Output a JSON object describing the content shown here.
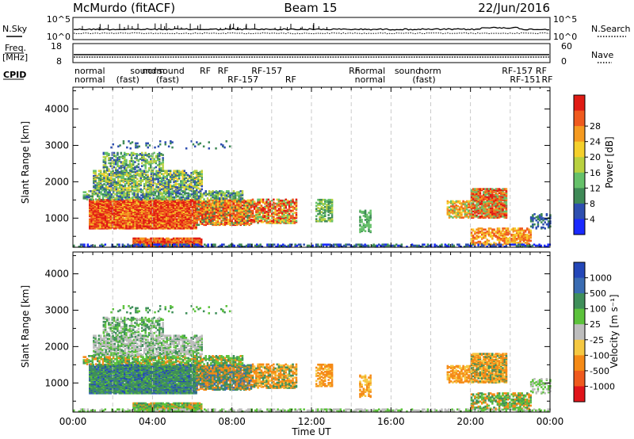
{
  "header": {
    "station": "McMurdo (fitACF)",
    "beam": "Beam 15",
    "date": "22/Jun/2016"
  },
  "noise_panel": {
    "left_label": "N.Sky",
    "right_label": "N.Search",
    "left_ticks": [
      "10^5",
      "10^0"
    ],
    "right_ticks": [
      "10^5",
      "10^0"
    ]
  },
  "freq_panel": {
    "left_label_line1": "Freq.",
    "left_label_line2": "[MHz]",
    "right_label": "Nave",
    "left_ticks": [
      "18",
      "8"
    ],
    "right_ticks": [
      "60",
      "0"
    ]
  },
  "cpid": {
    "label": "CPID",
    "row1": [
      {
        "text": "normal",
        "x": 0.0
      },
      {
        "text": "sound",
        "x": 2.8
      },
      {
        "text": "norm",
        "x": 3.4
      },
      {
        "text": "sound",
        "x": 4.2
      },
      {
        "text": "RF",
        "x": 6.3
      },
      {
        "text": "RF",
        "x": 7.2
      },
      {
        "text": "RF-157",
        "x": 8.9
      },
      {
        "text": "RF",
        "x": 13.8
      },
      {
        "text": "normal",
        "x": 14.1
      },
      {
        "text": "sound",
        "x": 16.1
      },
      {
        "text": "norm",
        "x": 17.3
      },
      {
        "text": "RF-157",
        "x": 21.5
      },
      {
        "text": "RF",
        "x": 23.2
      }
    ],
    "row2": [
      {
        "text": "normal",
        "x": 0.0
      },
      {
        "text": "(fast)",
        "x": 2.1
      },
      {
        "text": "(fast)",
        "x": 4.1
      },
      {
        "text": "RF-157",
        "x": 7.7
      },
      {
        "text": "RF",
        "x": 10.6
      },
      {
        "text": "normal",
        "x": 14.1
      },
      {
        "text": "(fast)",
        "x": 17.0
      },
      {
        "text": "RF-151",
        "x": 21.9
      },
      {
        "text": "RF",
        "x": 23.5
      }
    ]
  },
  "chart_data": [
    {
      "type": "heatmap",
      "parameter": "Power",
      "ylabel": "Slant Range [km]",
      "x_range_hours": [
        0,
        24
      ],
      "ylim": [
        200,
        4600
      ],
      "yticks": [
        1000,
        2000,
        3000,
        4000
      ],
      "colorbar_label": "Power [dB]",
      "colorbar_ticks": [
        "4",
        "8",
        "12",
        "16",
        "20",
        "24",
        "28"
      ],
      "colors": [
        "#1a2aff",
        "#2e4fb0",
        "#3f8a57",
        "#66c16a",
        "#b9d140",
        "#f5d02c",
        "#f59a20",
        "#ef5a1e",
        "#e01b14"
      ]
    },
    {
      "type": "heatmap",
      "parameter": "Velocity",
      "ylabel": "Slant Range [km]",
      "xlabel": "Time UT",
      "x_range_hours": [
        0,
        24
      ],
      "ylim": [
        200,
        4600
      ],
      "yticks": [
        1000,
        2000,
        3000,
        4000
      ],
      "xticks": [
        "00:00",
        "04:00",
        "08:00",
        "12:00",
        "16:00",
        "20:00",
        "00:00"
      ],
      "colorbar_label": "Velocity [m s⁻¹]",
      "colorbar_ticks": [
        "1000",
        "500",
        "100",
        "25",
        "-25",
        "-100",
        "-500",
        "-1000"
      ],
      "colors": [
        "#2447b8",
        "#3a6cb2",
        "#3f8f5a",
        "#5cc23c",
        "#bdbdbd",
        "#f5c842",
        "#f58a16",
        "#ef5a1e",
        "#e0141a"
      ]
    }
  ]
}
